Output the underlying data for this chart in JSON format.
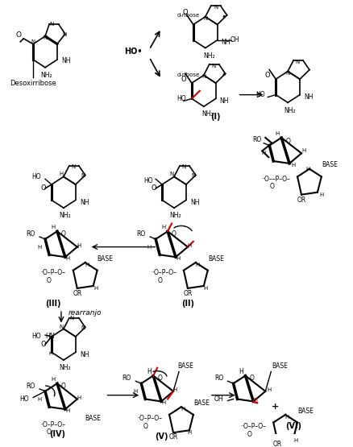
{
  "title": "",
  "background_color": "#ffffff",
  "fig_width": 4.39,
  "fig_height": 5.55,
  "dpi": 100,
  "structures": {
    "guanine_label": "Desoxirribose",
    "ho_label": "HO˙",
    "d_ribose_label": "d-ribose",
    "roman_labels": [
      "(I)",
      "(II)",
      "(III)",
      "(IV)",
      "(V)",
      "(VI)"
    ],
    "rearranjo_label": "rearranjo",
    "base_labels": [
      "BASE",
      "BASE",
      "BASE",
      "BASE",
      "BASE",
      "BASE"
    ],
    "or_labels": [
      "OR",
      "OR",
      "OR",
      "OR",
      "OR",
      "OR"
    ],
    "ro_labels": [
      "RO",
      "RO",
      "RO",
      "RO",
      "RO"
    ],
    "plus_label": "+",
    "oh_label": "OH"
  },
  "colors": {
    "black": "#000000",
    "red": "#cc0000",
    "white": "#ffffff"
  }
}
